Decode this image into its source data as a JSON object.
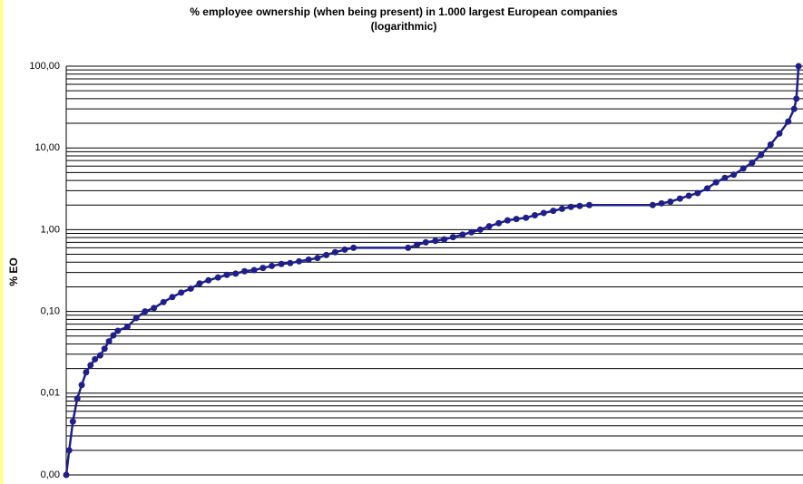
{
  "chart_data": {
    "type": "line",
    "title": "% employee ownership (when being present) in 1.000 largest European companies",
    "subtitle": "(logarithmic)",
    "y_label": "% EO",
    "log_y": true,
    "grid": true,
    "minor_grid": true,
    "xlim": [
      0,
      1000
    ],
    "ylim": [
      0.001,
      100
    ],
    "yticks": [
      {
        "value": 0.001,
        "label": "0,00"
      },
      {
        "value": 0.01,
        "label": "0,01"
      },
      {
        "value": 0.1,
        "label": "0,10"
      },
      {
        "value": 1,
        "label": "1,00"
      },
      {
        "value": 10,
        "label": "10,00"
      },
      {
        "value": 100,
        "label": "100,00"
      }
    ],
    "x": [
      0,
      4,
      9,
      15,
      21,
      27,
      33,
      39,
      46,
      52,
      58,
      64,
      70,
      83,
      95,
      107,
      119,
      132,
      144,
      156,
      169,
      181,
      193,
      206,
      218,
      230,
      242,
      255,
      267,
      279,
      292,
      304,
      316,
      329,
      341,
      353,
      365,
      378,
      390,
      464,
      476,
      488,
      501,
      513,
      525,
      538,
      550,
      562,
      574,
      587,
      599,
      611,
      624,
      636,
      648,
      661,
      673,
      685,
      697,
      710,
      796,
      808,
      820,
      833,
      845,
      857,
      870,
      882,
      894,
      906,
      919,
      931,
      943,
      956,
      968,
      980,
      988,
      991,
      994
    ],
    "series": [
      {
        "color": "#1f1f8a",
        "values": [
          0.001,
          0.002,
          0.0045,
          0.0086,
          0.0126,
          0.018,
          0.022,
          0.026,
          0.029,
          0.035,
          0.043,
          0.051,
          0.058,
          0.065,
          0.083,
          0.1,
          0.11,
          0.13,
          0.15,
          0.17,
          0.19,
          0.22,
          0.24,
          0.26,
          0.28,
          0.29,
          0.31,
          0.32,
          0.34,
          0.36,
          0.38,
          0.39,
          0.41,
          0.43,
          0.45,
          0.49,
          0.53,
          0.57,
          0.6,
          0.6,
          0.65,
          0.7,
          0.73,
          0.76,
          0.81,
          0.87,
          0.93,
          1.0,
          1.1,
          1.2,
          1.3,
          1.35,
          1.4,
          1.5,
          1.6,
          1.7,
          1.8,
          1.9,
          1.95,
          2.0,
          2.0,
          2.1,
          2.2,
          2.4,
          2.6,
          2.8,
          3.2,
          3.8,
          4.3,
          4.7,
          5.6,
          6.6,
          8.2,
          11,
          15,
          21,
          30,
          40,
          100
        ]
      }
    ]
  }
}
